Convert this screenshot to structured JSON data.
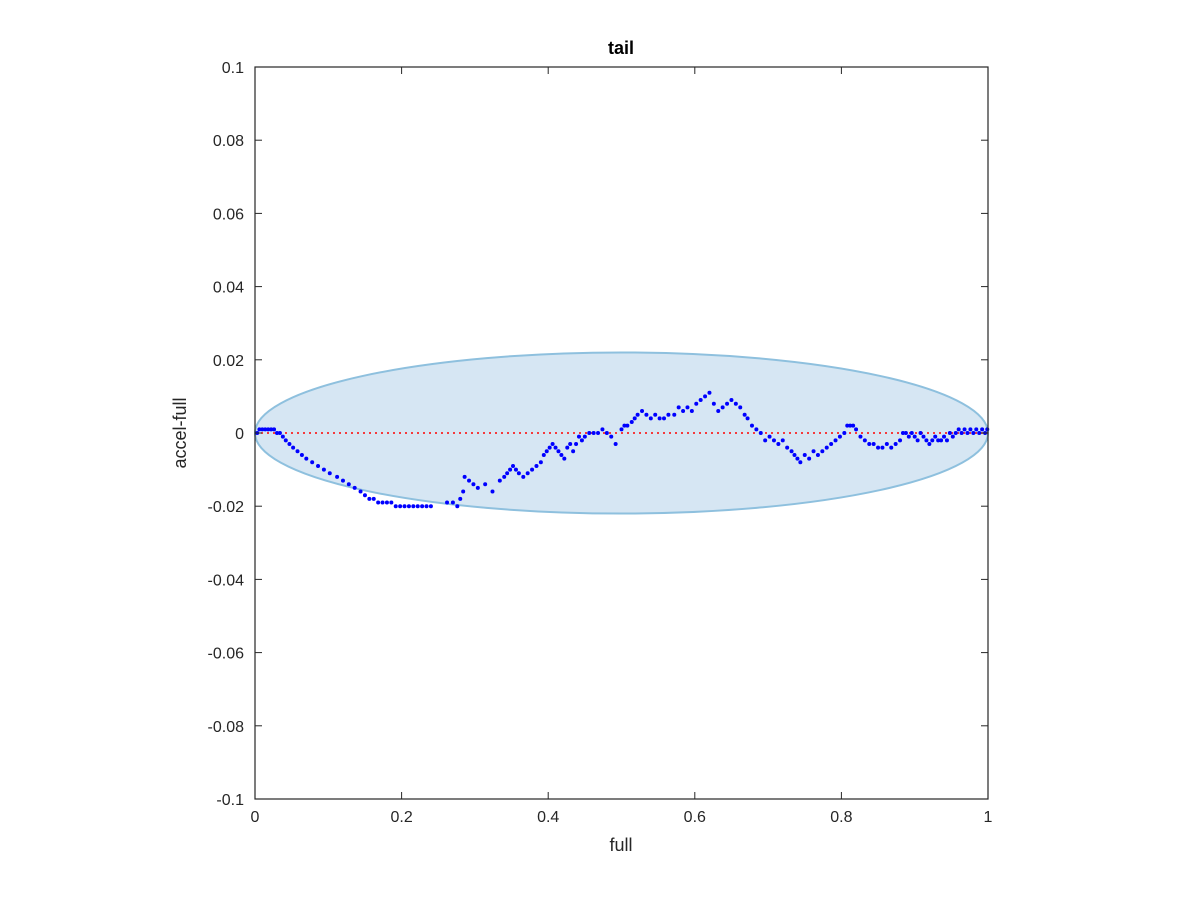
{
  "chart_data": {
    "type": "scatter",
    "title": "tail",
    "xlabel": "full",
    "ylabel": "accel-full",
    "xlim": [
      0,
      1
    ],
    "ylim": [
      -0.1,
      0.1
    ],
    "xticks": [
      0,
      0.2,
      0.4,
      0.6,
      0.8,
      1
    ],
    "xtick_labels": [
      "0",
      "0.2",
      "0.4",
      "0.6",
      "0.8",
      "1"
    ],
    "yticks": [
      -0.1,
      -0.08,
      -0.06,
      -0.04,
      -0.02,
      0,
      0.02,
      0.04,
      0.06,
      0.08,
      0.1
    ],
    "ytick_labels": [
      "-0.1",
      "-0.08",
      "-0.06",
      "-0.04",
      "-0.02",
      "0",
      "0.02",
      "0.04",
      "0.06",
      "0.08",
      "0.1"
    ],
    "grid": false,
    "reference_line": {
      "y": 0,
      "style": "dotted",
      "color": "#ff0000"
    },
    "ellipse": {
      "center_x": 0.5,
      "center_y": 0,
      "radius_x": 0.5,
      "radius_y": 0.022,
      "fill": "#d6e6f3",
      "stroke": "#8ec0de"
    },
    "series": [
      {
        "color": "#0000ff",
        "points": [
          [
            0.003,
            0.0
          ],
          [
            0.006,
            0.001
          ],
          [
            0.01,
            0.001
          ],
          [
            0.014,
            0.001
          ],
          [
            0.018,
            0.001
          ],
          [
            0.022,
            0.001
          ],
          [
            0.026,
            0.001
          ],
          [
            0.03,
            0.0
          ],
          [
            0.034,
            0.0
          ],
          [
            0.038,
            -0.001
          ],
          [
            0.042,
            -0.002
          ],
          [
            0.047,
            -0.003
          ],
          [
            0.052,
            -0.004
          ],
          [
            0.058,
            -0.005
          ],
          [
            0.064,
            -0.006
          ],
          [
            0.07,
            -0.007
          ],
          [
            0.078,
            -0.008
          ],
          [
            0.086,
            -0.009
          ],
          [
            0.094,
            -0.01
          ],
          [
            0.102,
            -0.011
          ],
          [
            0.112,
            -0.012
          ],
          [
            0.12,
            -0.013
          ],
          [
            0.128,
            -0.014
          ],
          [
            0.136,
            -0.015
          ],
          [
            0.144,
            -0.016
          ],
          [
            0.15,
            -0.017
          ],
          [
            0.156,
            -0.018
          ],
          [
            0.162,
            -0.018
          ],
          [
            0.168,
            -0.019
          ],
          [
            0.174,
            -0.019
          ],
          [
            0.18,
            -0.019
          ],
          [
            0.186,
            -0.019
          ],
          [
            0.192,
            -0.02
          ],
          [
            0.198,
            -0.02
          ],
          [
            0.204,
            -0.02
          ],
          [
            0.21,
            -0.02
          ],
          [
            0.216,
            -0.02
          ],
          [
            0.222,
            -0.02
          ],
          [
            0.228,
            -0.02
          ],
          [
            0.234,
            -0.02
          ],
          [
            0.24,
            -0.02
          ],
          [
            0.262,
            -0.019
          ],
          [
            0.27,
            -0.019
          ],
          [
            0.276,
            -0.02
          ],
          [
            0.28,
            -0.018
          ],
          [
            0.284,
            -0.016
          ],
          [
            0.286,
            -0.012
          ],
          [
            0.292,
            -0.013
          ],
          [
            0.298,
            -0.014
          ],
          [
            0.304,
            -0.015
          ],
          [
            0.314,
            -0.014
          ],
          [
            0.324,
            -0.016
          ],
          [
            0.334,
            -0.013
          ],
          [
            0.34,
            -0.012
          ],
          [
            0.344,
            -0.011
          ],
          [
            0.348,
            -0.01
          ],
          [
            0.352,
            -0.009
          ],
          [
            0.356,
            -0.01
          ],
          [
            0.36,
            -0.011
          ],
          [
            0.366,
            -0.012
          ],
          [
            0.372,
            -0.011
          ],
          [
            0.378,
            -0.01
          ],
          [
            0.384,
            -0.009
          ],
          [
            0.39,
            -0.008
          ],
          [
            0.394,
            -0.006
          ],
          [
            0.398,
            -0.005
          ],
          [
            0.402,
            -0.004
          ],
          [
            0.406,
            -0.003
          ],
          [
            0.41,
            -0.004
          ],
          [
            0.414,
            -0.005
          ],
          [
            0.418,
            -0.006
          ],
          [
            0.422,
            -0.007
          ],
          [
            0.426,
            -0.004
          ],
          [
            0.43,
            -0.003
          ],
          [
            0.434,
            -0.005
          ],
          [
            0.438,
            -0.003
          ],
          [
            0.442,
            -0.001
          ],
          [
            0.446,
            -0.002
          ],
          [
            0.45,
            -0.001
          ],
          [
            0.456,
            0.0
          ],
          [
            0.462,
            0.0
          ],
          [
            0.468,
            0.0
          ],
          [
            0.474,
            0.001
          ],
          [
            0.48,
            0.0
          ],
          [
            0.486,
            -0.001
          ],
          [
            0.492,
            -0.003
          ],
          [
            0.5,
            0.001
          ],
          [
            0.504,
            0.002
          ],
          [
            0.508,
            0.002
          ],
          [
            0.514,
            0.003
          ],
          [
            0.518,
            0.004
          ],
          [
            0.522,
            0.005
          ],
          [
            0.528,
            0.006
          ],
          [
            0.534,
            0.005
          ],
          [
            0.54,
            0.004
          ],
          [
            0.546,
            0.005
          ],
          [
            0.552,
            0.004
          ],
          [
            0.558,
            0.004
          ],
          [
            0.564,
            0.005
          ],
          [
            0.572,
            0.005
          ],
          [
            0.578,
            0.007
          ],
          [
            0.584,
            0.006
          ],
          [
            0.59,
            0.007
          ],
          [
            0.596,
            0.006
          ],
          [
            0.602,
            0.008
          ],
          [
            0.608,
            0.009
          ],
          [
            0.614,
            0.01
          ],
          [
            0.62,
            0.011
          ],
          [
            0.626,
            0.008
          ],
          [
            0.632,
            0.006
          ],
          [
            0.638,
            0.007
          ],
          [
            0.644,
            0.008
          ],
          [
            0.65,
            0.009
          ],
          [
            0.656,
            0.008
          ],
          [
            0.662,
            0.007
          ],
          [
            0.668,
            0.005
          ],
          [
            0.672,
            0.004
          ],
          [
            0.678,
            0.002
          ],
          [
            0.684,
            0.001
          ],
          [
            0.69,
            0.0
          ],
          [
            0.696,
            -0.002
          ],
          [
            0.702,
            -0.001
          ],
          [
            0.708,
            -0.002
          ],
          [
            0.714,
            -0.003
          ],
          [
            0.72,
            -0.002
          ],
          [
            0.726,
            -0.004
          ],
          [
            0.732,
            -0.005
          ],
          [
            0.736,
            -0.006
          ],
          [
            0.74,
            -0.007
          ],
          [
            0.744,
            -0.008
          ],
          [
            0.75,
            -0.006
          ],
          [
            0.756,
            -0.007
          ],
          [
            0.762,
            -0.005
          ],
          [
            0.768,
            -0.006
          ],
          [
            0.774,
            -0.005
          ],
          [
            0.78,
            -0.004
          ],
          [
            0.786,
            -0.003
          ],
          [
            0.792,
            -0.002
          ],
          [
            0.798,
            -0.001
          ],
          [
            0.804,
            0.0
          ],
          [
            0.808,
            0.002
          ],
          [
            0.812,
            0.002
          ],
          [
            0.816,
            0.002
          ],
          [
            0.82,
            0.001
          ],
          [
            0.826,
            -0.001
          ],
          [
            0.832,
            -0.002
          ],
          [
            0.838,
            -0.003
          ],
          [
            0.844,
            -0.003
          ],
          [
            0.85,
            -0.004
          ],
          [
            0.856,
            -0.004
          ],
          [
            0.862,
            -0.003
          ],
          [
            0.868,
            -0.004
          ],
          [
            0.874,
            -0.003
          ],
          [
            0.88,
            -0.002
          ],
          [
            0.884,
            0.0
          ],
          [
            0.888,
            0.0
          ],
          [
            0.892,
            -0.001
          ],
          [
            0.896,
            0.0
          ],
          [
            0.9,
            -0.001
          ],
          [
            0.904,
            -0.002
          ],
          [
            0.908,
            0.0
          ],
          [
            0.912,
            -0.001
          ],
          [
            0.916,
            -0.002
          ],
          [
            0.92,
            -0.003
          ],
          [
            0.924,
            -0.002
          ],
          [
            0.928,
            -0.001
          ],
          [
            0.932,
            -0.002
          ],
          [
            0.936,
            -0.002
          ],
          [
            0.94,
            -0.001
          ],
          [
            0.944,
            -0.002
          ],
          [
            0.948,
            0.0
          ],
          [
            0.952,
            -0.001
          ],
          [
            0.956,
            0.0
          ],
          [
            0.96,
            0.001
          ],
          [
            0.964,
            0.0
          ],
          [
            0.968,
            0.001
          ],
          [
            0.972,
            0.0
          ],
          [
            0.976,
            0.001
          ],
          [
            0.98,
            0.0
          ],
          [
            0.984,
            0.001
          ],
          [
            0.988,
            0.0
          ],
          [
            0.992,
            0.001
          ],
          [
            0.996,
            0.0
          ],
          [
            0.999,
            0.001
          ]
        ]
      }
    ]
  }
}
